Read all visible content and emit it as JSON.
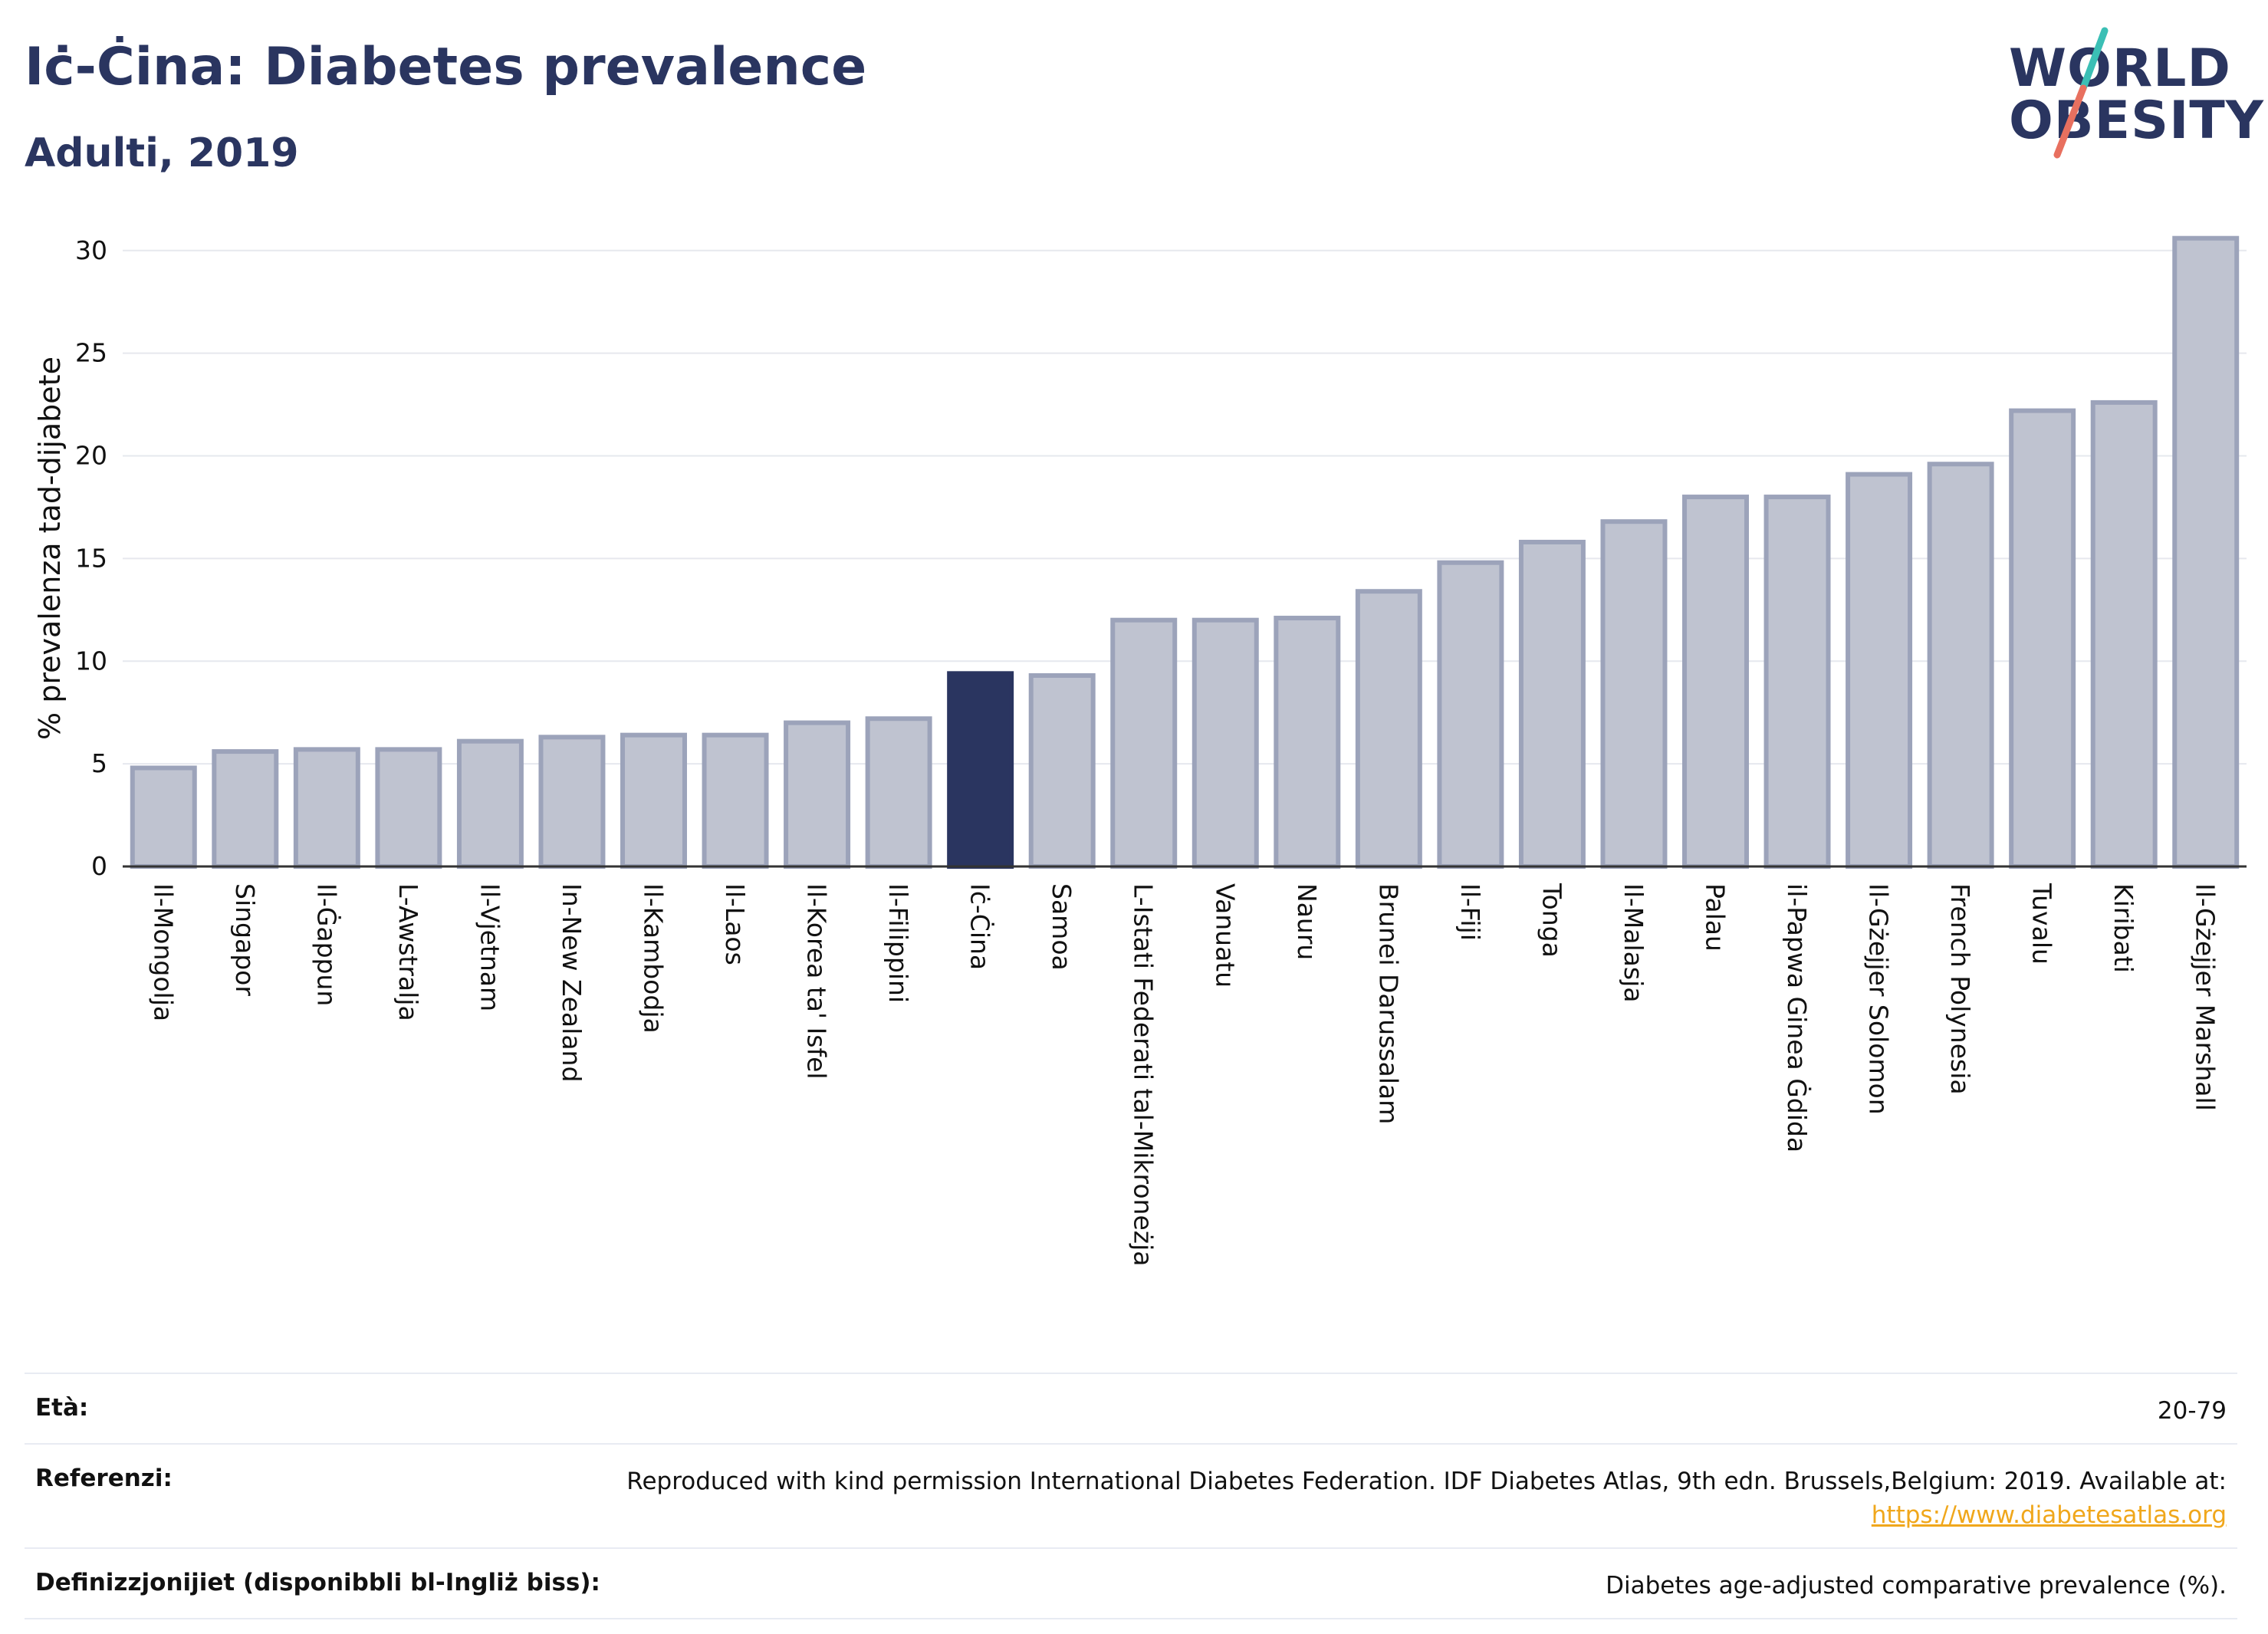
{
  "header": {
    "title": "Iċ-Ċina: Diabetes prevalence",
    "subtitle": "Adulti, 2019"
  },
  "logo": {
    "line1": "WORLD",
    "line2": "OBESITY",
    "colors": {
      "text": "#2a3560",
      "slash_teal": "#3bbfb5",
      "slash_coral": "#e8705f"
    }
  },
  "chart_data": {
    "type": "bar",
    "title": "",
    "xlabel": "",
    "ylabel": "% prevalenza tad-dijabete",
    "ylim": [
      0,
      31
    ],
    "yticks": [
      0,
      5,
      10,
      15,
      20,
      25,
      30
    ],
    "grid": true,
    "highlight": "Iċ-Ċina",
    "colors": {
      "bar": "#bfc3d0",
      "bar_border": "#9ca3ba",
      "highlight": "#2a3560"
    },
    "categories": [
      "Il-Mongolja",
      "Singapor",
      "Il-Ġappun",
      "L-Awstralja",
      "Il-Vjetnam",
      "In-New Zealand",
      "Il-Kambodja",
      "Il-Laos",
      "Il-Korea ta' Isfel",
      "Il-Filippini",
      "Iċ-Ċina",
      "Samoa",
      "L-Istati Federati tal-Mikroneżja",
      "Vanuatu",
      "Nauru",
      "Brunei Darussalam",
      "Il-Fiji",
      "Tonga",
      "Il-Malasja",
      "Palau",
      "il-Papwa Ginea Ġdida",
      "Il-Gżejjer Solomon",
      "French Polynesia",
      "Tuvalu",
      "Kiribati",
      "Il-Gżejjer Marshall"
    ],
    "values": [
      4.8,
      5.6,
      5.7,
      5.7,
      6.1,
      6.3,
      6.4,
      6.4,
      7.0,
      7.2,
      9.4,
      9.3,
      12.0,
      12.0,
      12.1,
      13.4,
      14.8,
      15.8,
      16.8,
      18.0,
      18.0,
      19.1,
      19.6,
      22.2,
      22.6,
      30.6
    ]
  },
  "footer": {
    "rows": [
      {
        "label": "Età:",
        "value": "20-79"
      },
      {
        "label": "Referenzi:",
        "value": "Reproduced with kind permission International Diabetes Federation. IDF Diabetes Atlas, 9th edn. Brussels,Belgium: 2019. Available at:",
        "link": "https://www.diabetesatlas.org"
      },
      {
        "label": "Definizzjonijiet (disponibbli bl-Ingliż biss):",
        "value": "Diabetes age-adjusted comparative prevalence (%)."
      }
    ]
  }
}
